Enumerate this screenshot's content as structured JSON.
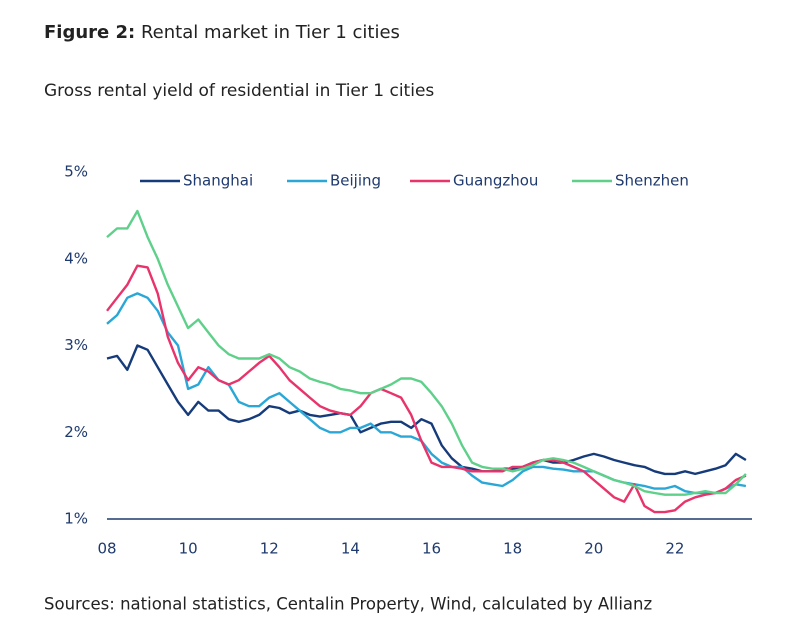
{
  "chart_data": {
    "type": "line",
    "figure_label": "Figure 2:",
    "title": "Rental market in Tier 1 cities",
    "subtitle": "Gross rental yield of residential in Tier 1 cities",
    "source": "Sources: national statistics, Centalin Property, Wind, calculated by Allianz",
    "x": [
      8,
      8.25,
      8.5,
      8.75,
      9,
      9.25,
      9.5,
      9.75,
      10,
      10.25,
      10.5,
      10.75,
      11,
      11.25,
      11.5,
      11.75,
      12,
      12.25,
      12.5,
      12.75,
      13,
      13.25,
      13.5,
      13.75,
      14,
      14.25,
      14.5,
      14.75,
      15,
      15.25,
      15.5,
      15.75,
      16,
      16.25,
      16.5,
      16.75,
      17,
      17.25,
      17.5,
      17.75,
      18,
      18.25,
      18.5,
      18.75,
      19,
      19.25,
      19.5,
      19.75,
      20,
      20.25,
      20.5,
      20.75,
      21,
      21.25,
      21.5,
      21.75,
      22,
      22.25,
      22.5,
      22.75,
      23,
      23.25,
      23.5,
      23.75
    ],
    "series": [
      {
        "name": "Shanghai",
        "color": "#163b7a",
        "values": [
          2.85,
          2.88,
          2.72,
          3.0,
          2.95,
          2.75,
          2.55,
          2.35,
          2.2,
          2.35,
          2.25,
          2.25,
          2.15,
          2.12,
          2.15,
          2.2,
          2.3,
          2.28,
          2.22,
          2.25,
          2.2,
          2.18,
          2.2,
          2.22,
          2.2,
          2.0,
          2.05,
          2.1,
          2.12,
          2.12,
          2.05,
          2.15,
          2.1,
          1.85,
          1.7,
          1.6,
          1.58,
          1.55,
          1.55,
          1.58,
          1.58,
          1.6,
          1.65,
          1.68,
          1.65,
          1.65,
          1.68,
          1.72,
          1.75,
          1.72,
          1.68,
          1.65,
          1.62,
          1.6,
          1.55,
          1.52,
          1.52,
          1.55,
          1.52,
          1.55,
          1.58,
          1.62,
          1.75,
          1.68
        ]
      },
      {
        "name": "Beijing",
        "color": "#2aa7d6",
        "values": [
          3.25,
          3.35,
          3.55,
          3.6,
          3.55,
          3.4,
          3.15,
          3.0,
          2.5,
          2.55,
          2.75,
          2.6,
          2.55,
          2.35,
          2.3,
          2.3,
          2.4,
          2.45,
          2.35,
          2.25,
          2.15,
          2.05,
          2.0,
          2.0,
          2.05,
          2.05,
          2.1,
          2.0,
          2.0,
          1.95,
          1.95,
          1.9,
          1.75,
          1.65,
          1.6,
          1.6,
          1.5,
          1.42,
          1.4,
          1.38,
          1.45,
          1.55,
          1.6,
          1.6,
          1.58,
          1.57,
          1.55,
          1.55,
          1.55,
          1.5,
          1.45,
          1.42,
          1.4,
          1.38,
          1.35,
          1.35,
          1.38,
          1.32,
          1.3,
          1.3,
          1.3,
          1.35,
          1.4,
          1.38
        ]
      },
      {
        "name": "Guangzhou",
        "color": "#e8336b",
        "values": [
          3.4,
          3.55,
          3.7,
          3.92,
          3.9,
          3.6,
          3.1,
          2.8,
          2.6,
          2.75,
          2.7,
          2.6,
          2.55,
          2.6,
          2.7,
          2.8,
          2.88,
          2.75,
          2.6,
          2.5,
          2.4,
          2.3,
          2.25,
          2.22,
          2.2,
          2.3,
          2.45,
          2.5,
          2.45,
          2.4,
          2.2,
          1.9,
          1.65,
          1.6,
          1.6,
          1.58,
          1.55,
          1.55,
          1.55,
          1.55,
          1.6,
          1.6,
          1.65,
          1.68,
          1.68,
          1.65,
          1.6,
          1.55,
          1.45,
          1.35,
          1.25,
          1.2,
          1.4,
          1.15,
          1.08,
          1.08,
          1.1,
          1.2,
          1.25,
          1.28,
          1.3,
          1.35,
          1.45,
          1.5
        ]
      },
      {
        "name": "Shenzhen",
        "color": "#5fd08a",
        "values": [
          4.25,
          4.35,
          4.35,
          4.55,
          4.25,
          4.0,
          3.7,
          3.45,
          3.2,
          3.3,
          3.15,
          3.0,
          2.9,
          2.85,
          2.85,
          2.85,
          2.9,
          2.85,
          2.75,
          2.7,
          2.62,
          2.58,
          2.55,
          2.5,
          2.48,
          2.45,
          2.45,
          2.5,
          2.55,
          2.62,
          2.62,
          2.58,
          2.45,
          2.3,
          2.1,
          1.85,
          1.65,
          1.6,
          1.58,
          1.58,
          1.55,
          1.58,
          1.62,
          1.68,
          1.7,
          1.68,
          1.65,
          1.6,
          1.55,
          1.5,
          1.45,
          1.42,
          1.38,
          1.32,
          1.3,
          1.28,
          1.28,
          1.28,
          1.3,
          1.32,
          1.3,
          1.3,
          1.4,
          1.52
        ]
      }
    ],
    "xlim": [
      8,
      23.9
    ],
    "xticks": [
      {
        "value": 8,
        "label": "08"
      },
      10,
      12,
      14,
      16,
      18,
      20,
      22
    ],
    "ylim": [
      1,
      5
    ],
    "yticks": [
      {
        "value": 1,
        "label": "1%"
      },
      {
        "value": 2,
        "label": "2%"
      },
      {
        "value": 3,
        "label": "3%"
      },
      {
        "value": 4,
        "label": "4%"
      },
      {
        "value": 5,
        "label": "5%"
      }
    ],
    "grid": false,
    "legend": "top"
  }
}
